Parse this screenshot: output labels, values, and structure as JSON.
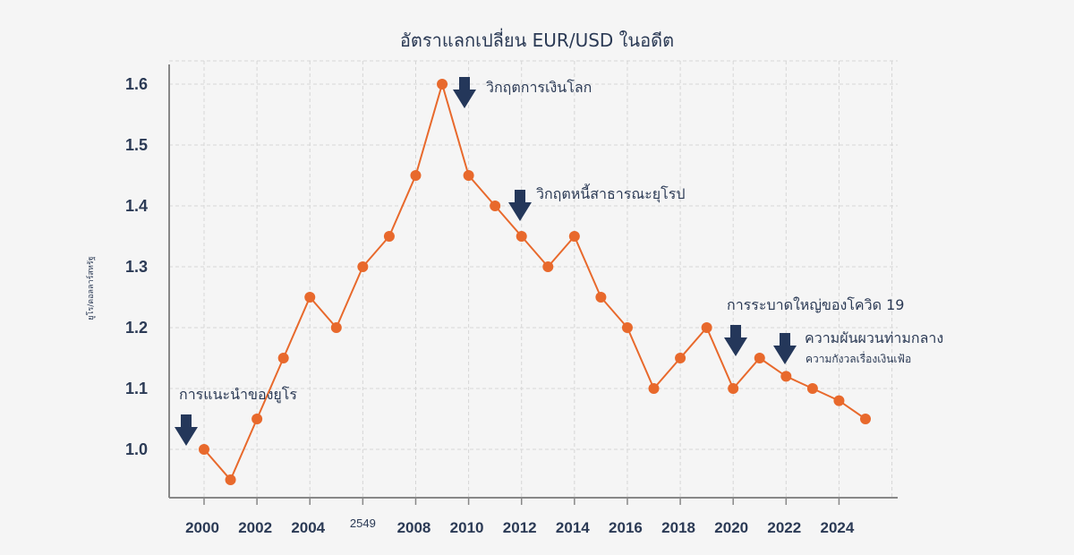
{
  "chart_data": {
    "type": "line",
    "title": "อัตราแลกเปลี่ยน EUR/USD ในอดีต",
    "ylabel": "ยูโร/ดอลลาร์สหรัฐ",
    "xlabel": "",
    "ylim": [
      0.93,
      1.66
    ],
    "xlim": [
      1999,
      2027
    ],
    "grid": true,
    "y_ticks": [
      "1.0",
      "1.1",
      "1.2",
      "1.3",
      "1.4",
      "1.5",
      "1.6"
    ],
    "x_ticks": [
      "2000",
      "2002",
      "2004",
      "2549",
      "2008",
      "2010",
      "2012",
      "2014",
      "2016",
      "2018",
      "2020",
      "2022",
      "2024"
    ],
    "colors": {
      "line": "#e8692c",
      "arrow": "#24375a",
      "text": "#2b3a55"
    },
    "x": [
      2000,
      2001,
      2002,
      2003,
      2004,
      2005,
      2006,
      2007,
      2008,
      2009,
      2010,
      2011,
      2012,
      2013,
      2014,
      2015,
      2016,
      2017,
      2018,
      2019,
      2020,
      2021,
      2022,
      2023,
      2024,
      2025
    ],
    "series": [
      {
        "values": [
          1.0,
          0.95,
          1.05,
          1.15,
          1.25,
          1.2,
          1.3,
          1.35,
          1.45,
          1.6,
          1.45,
          1.4,
          1.35,
          1.3,
          1.35,
          1.25,
          1.2,
          1.1,
          1.15,
          1.2,
          1.1,
          1.15,
          1.12,
          1.1,
          1.08,
          1.05
        ]
      }
    ],
    "annotations": [
      {
        "text": "การแนะนำของยูโร",
        "x": 2000
      },
      {
        "text": "วิกฤตการเงินโลก",
        "x": 2010
      },
      {
        "text": "วิกฤตหนี้สาธารณะยุโรป",
        "x": 2012
      },
      {
        "text": "การระบาดใหญ่ของโควิด 19",
        "x": 2020
      },
      {
        "text": "ความผันผวนท่ามกลาง",
        "subtext": "ความกังวลเรื่องเงินเฟ้อ",
        "x": 2022
      }
    ]
  }
}
